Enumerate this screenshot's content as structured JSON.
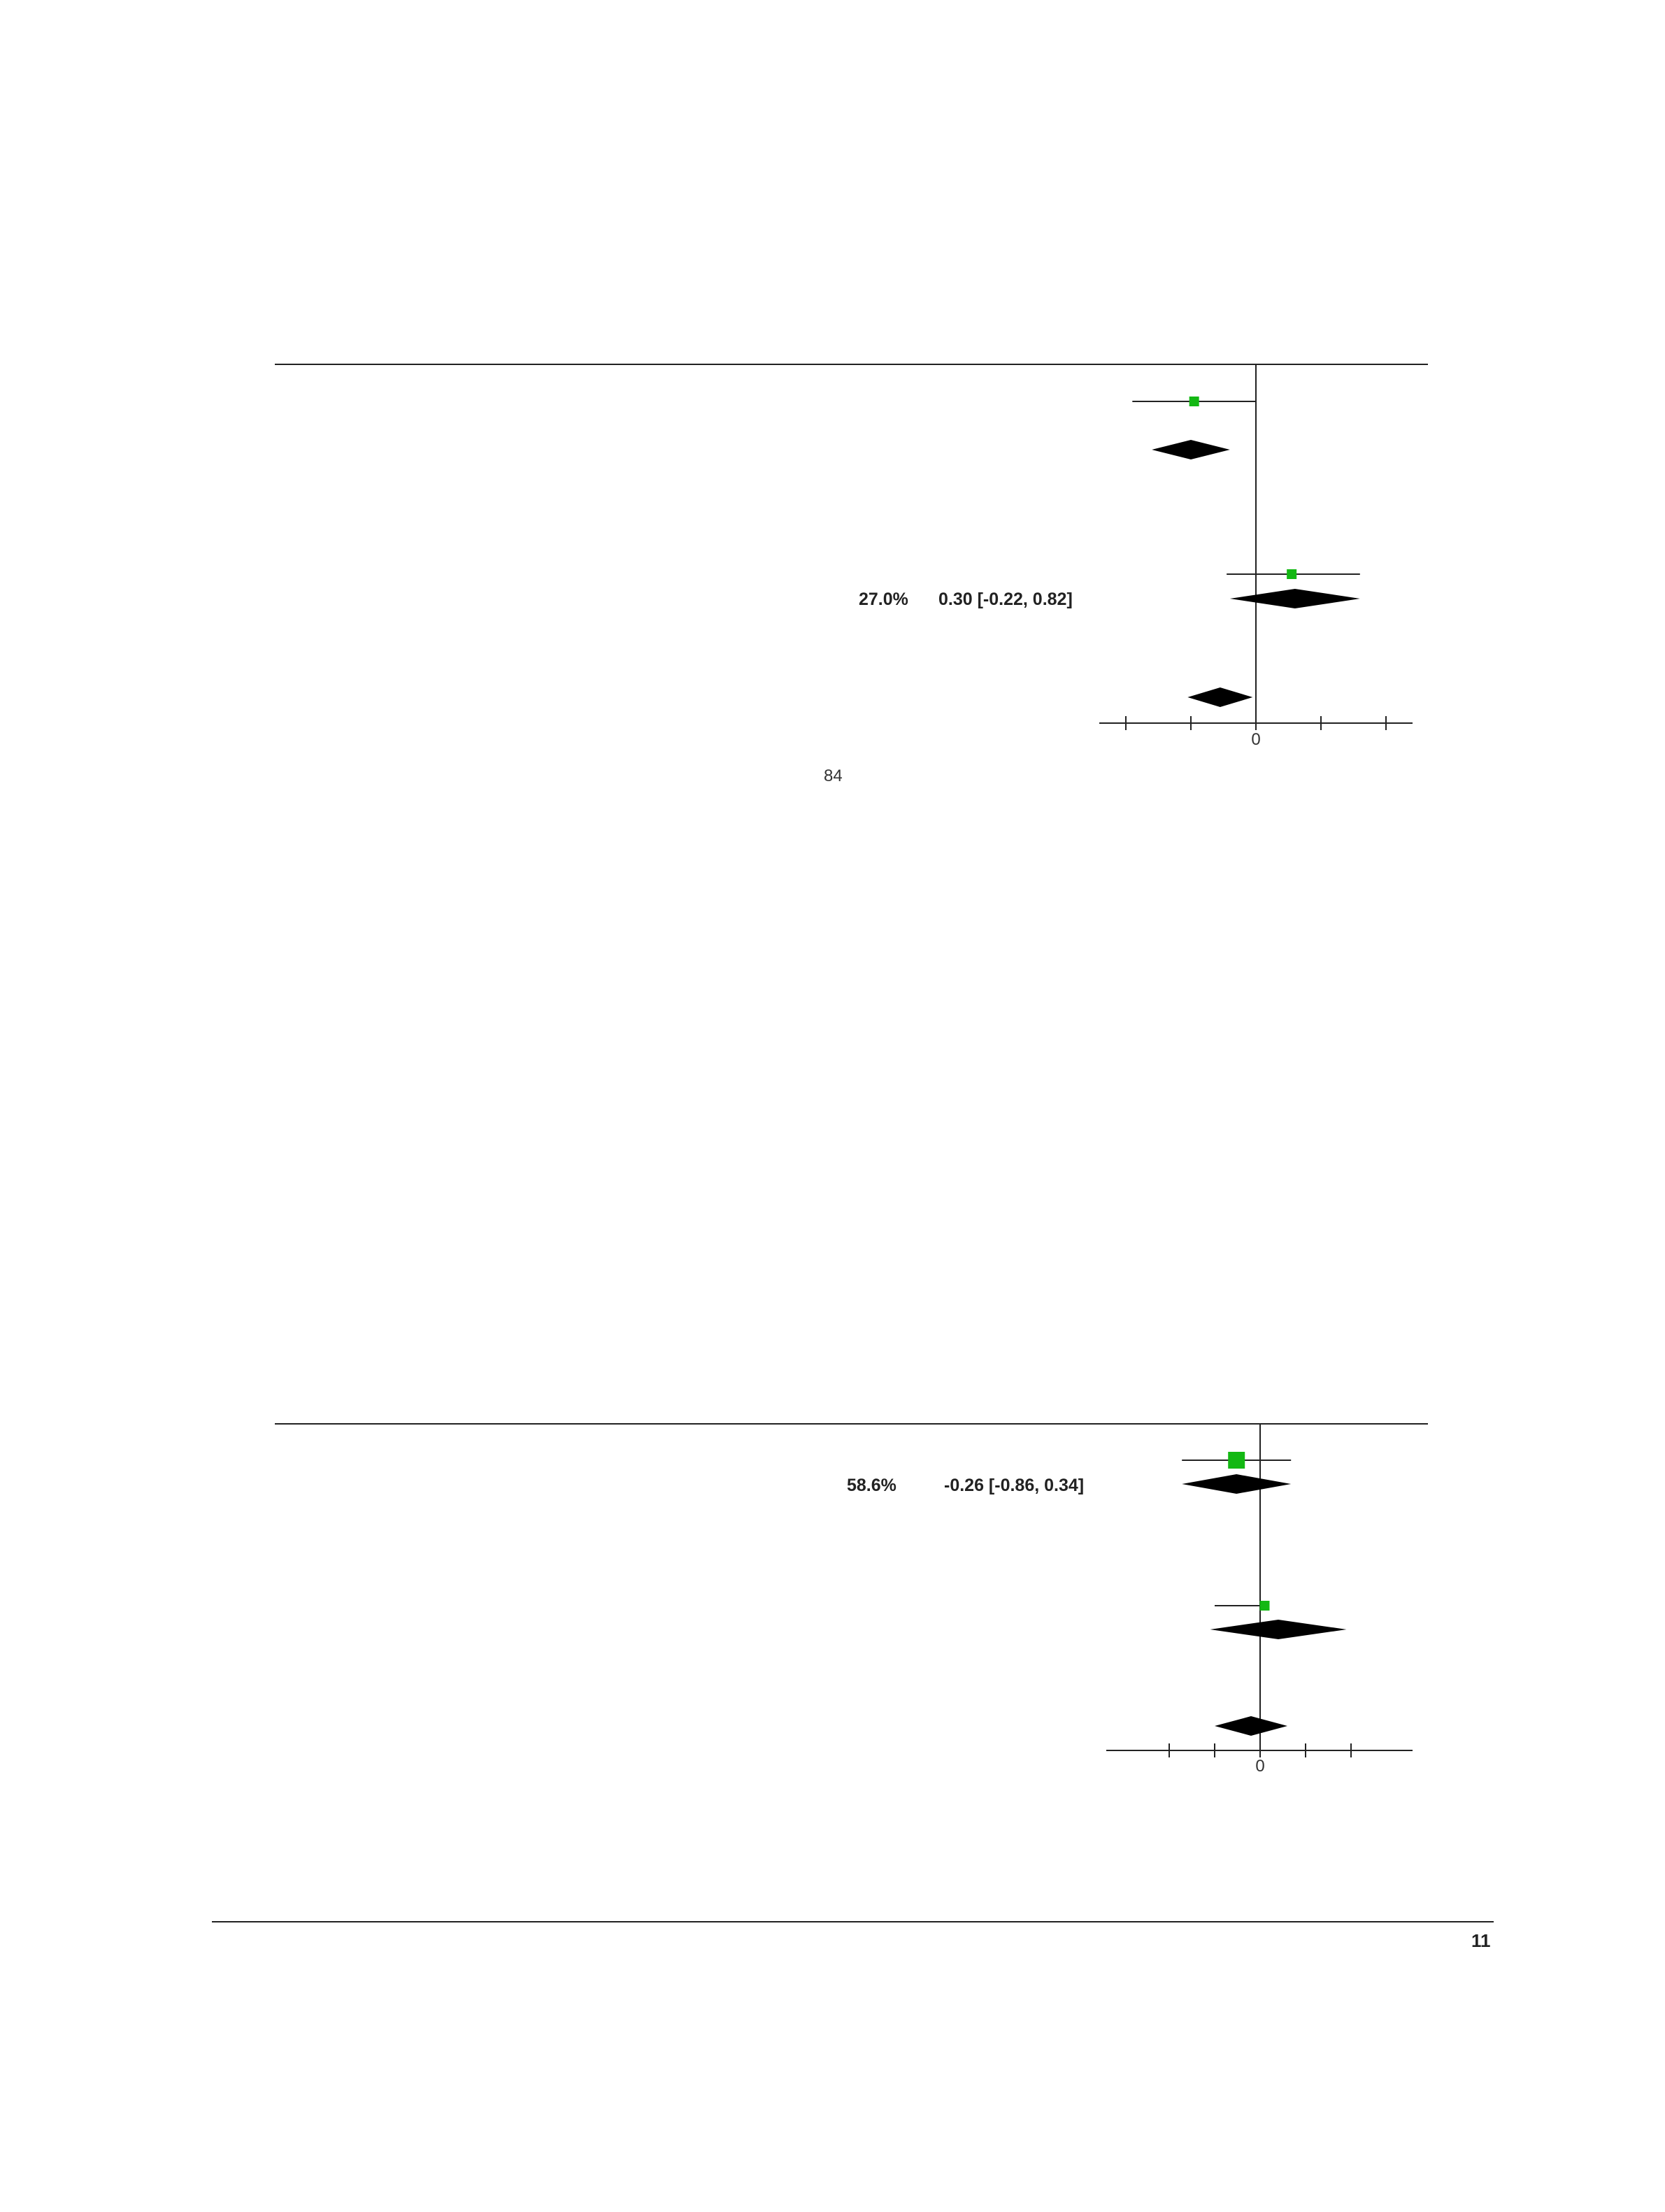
{
  "chart_data": [
    {
      "type": "forest",
      "zero_label": "0",
      "visible_row_labels": [
        {
          "weight": "27.0%",
          "ci": "0.30 [-0.22, 0.82]"
        }
      ],
      "studies": [
        {
          "est": -0.95,
          "lo": -1.9,
          "hi": 0.0,
          "size": "small"
        },
        {
          "est": 0.55,
          "lo": -0.45,
          "hi": 1.6,
          "size": "small"
        }
      ],
      "pooled": [
        {
          "est": -1.0,
          "lo": -1.6,
          "hi": -0.4
        },
        {
          "est": 0.6,
          "lo": -0.4,
          "hi": 1.6
        },
        {
          "est": -0.55,
          "lo": -1.05,
          "hi": -0.05
        }
      ],
      "xlim": [
        -2.4,
        2.4
      ],
      "ticks": [
        -2,
        -1,
        0,
        1,
        2
      ]
    },
    {
      "type": "forest",
      "zero_label": "0",
      "visible_row_labels": [
        {
          "weight": "58.6%",
          "ci": "-0.26 [-0.86, 0.34]"
        }
      ],
      "studies": [
        {
          "est": -0.26,
          "lo": -0.86,
          "hi": 0.34,
          "size": "large"
        },
        {
          "est": 0.05,
          "lo": -0.5,
          "hi": 0.05,
          "size": "small"
        }
      ],
      "pooled": [
        {
          "est": -0.26,
          "lo": -0.86,
          "hi": 0.34
        },
        {
          "est": 0.2,
          "lo": -0.55,
          "hi": 0.95
        },
        {
          "est": -0.1,
          "lo": -0.5,
          "hi": 0.3
        }
      ],
      "xlim": [
        -1.7,
        1.7
      ],
      "ticks": [
        -1,
        -0.5,
        0,
        0.5,
        1
      ]
    }
  ],
  "page_number_mid": "84",
  "footer_page": "11",
  "colors": {
    "study_marker": "#13b813",
    "pooled": "#000000",
    "line": "#222222"
  }
}
